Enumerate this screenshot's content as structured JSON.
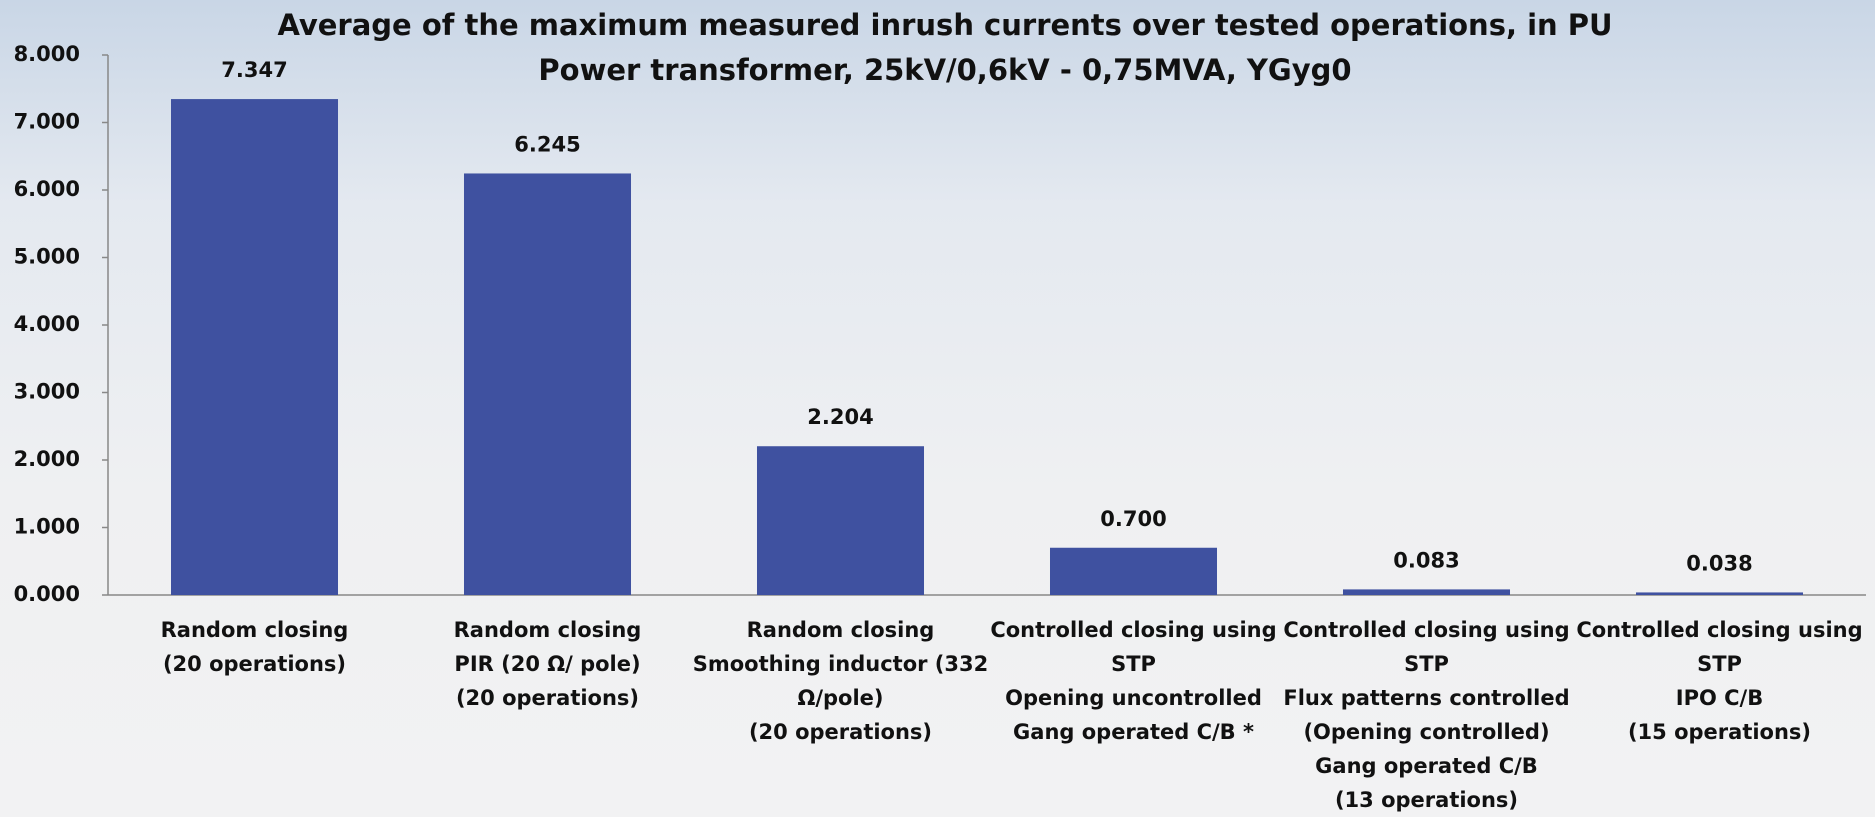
{
  "chart_data": {
    "type": "bar",
    "title": "Average of the maximum measured inrush currents over tested operations, in PU",
    "subtitle": "Power transformer, 25kV/0,6kV - 0,75MVA, YGyg0",
    "categories": [
      [
        "Random closing",
        "(20 operations)"
      ],
      [
        "Random closing",
        "PIR (20 Ω/ pole)",
        "(20 operations)"
      ],
      [
        "Random closing",
        "Smoothing inductor (332",
        "Ω/pole)",
        "(20 operations)"
      ],
      [
        "Controlled closing using",
        "STP",
        "Opening uncontrolled",
        "Gang operated C/B *"
      ],
      [
        "Controlled closing using",
        "STP",
        "Flux patterns controlled",
        "(Opening controlled)",
        "Gang operated C/B",
        "(13 operations)"
      ],
      [
        "Controlled closing using",
        "STP",
        "IPO C/B",
        "(15 operations)"
      ]
    ],
    "values": [
      7.347,
      6.245,
      2.204,
      0.7,
      0.083,
      0.038
    ],
    "value_labels": [
      "7.347",
      "6.245",
      "2.204",
      "0.700",
      "0.083",
      "0.038"
    ],
    "color": "#3f51a0",
    "ylim": [
      0,
      8
    ],
    "yticks": [
      {
        "value": 0,
        "label": "0.000"
      },
      {
        "value": 1,
        "label": "1.000"
      },
      {
        "value": 2,
        "label": "2.000"
      },
      {
        "value": 3,
        "label": "3.000"
      },
      {
        "value": 4,
        "label": "4.000"
      },
      {
        "value": 5,
        "label": "5.000"
      },
      {
        "value": 6,
        "label": "6.000"
      },
      {
        "value": 7,
        "label": "7.000"
      },
      {
        "value": 8,
        "label": "8.000"
      }
    ],
    "grid": false
  }
}
